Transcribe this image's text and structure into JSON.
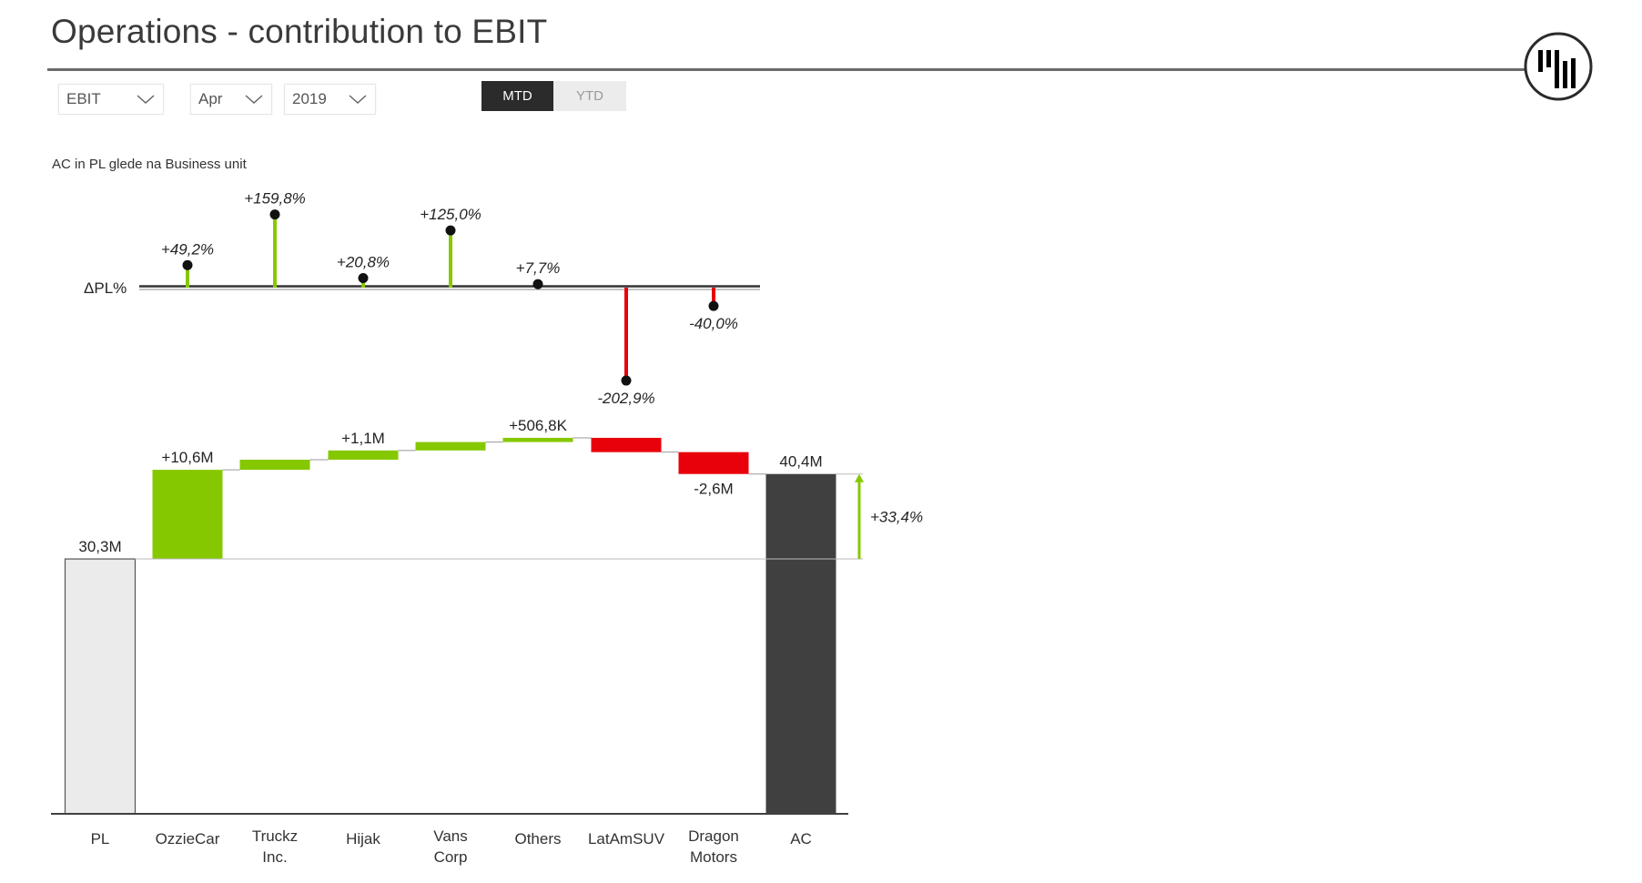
{
  "header": {
    "title": "Operations - contribution to EBIT"
  },
  "filters": {
    "measure": {
      "value": "EBIT"
    },
    "month": {
      "value": "Apr"
    },
    "year": {
      "value": "2019"
    }
  },
  "period_toggle": {
    "options": [
      "MTD",
      "YTD"
    ],
    "selected": "MTD"
  },
  "colors": {
    "positive": "#86c800",
    "negative": "#e8000b",
    "pl_fill": "#ebebeb",
    "ac_fill": "#404040",
    "axis": "#404040",
    "dot": "#111111"
  },
  "chart_data": [
    {
      "type": "lollipop",
      "title": "AC in PL glede na Business unit",
      "axis_label": "ΔPL%",
      "categories": [
        "OzzieCar",
        "Truckz Inc.",
        "Hijak",
        "Vans Corp",
        "Others",
        "LatAmSUV",
        "Dragon Motors"
      ],
      "values": [
        49.2,
        159.8,
        20.8,
        125.0,
        7.7,
        -202.9,
        -40.0
      ],
      "labels": [
        "+49,2%",
        "+159,8%",
        "+20,8%",
        "+125,0%",
        "+7,7%",
        "-202,9%",
        "-40,0%"
      ]
    },
    {
      "type": "waterfall",
      "categories": [
        "PL",
        "OzzieCar",
        "Truckz Inc.",
        "Hijak",
        "Vans Corp",
        "Others",
        "LatAmSUV",
        "Dragon Motors",
        "AC"
      ],
      "category_lines": [
        [
          "PL"
        ],
        [
          "OzzieCar"
        ],
        [
          "Truckz",
          "Inc."
        ],
        [
          "Hijak"
        ],
        [
          "Vans",
          "Corp"
        ],
        [
          "Others"
        ],
        [
          "LatAmSUV"
        ],
        [
          "Dragon",
          "Motors"
        ],
        [
          "AC"
        ]
      ],
      "kinds": [
        "total",
        "delta",
        "delta",
        "delta",
        "delta",
        "delta",
        "delta",
        "delta",
        "total"
      ],
      "values": [
        30.3,
        10.6,
        1.2,
        1.1,
        1.0,
        0.5,
        -1.7,
        -2.6,
        40.4
      ],
      "labels": [
        "30,3M",
        "+10,6M",
        "",
        "+1,1M",
        "",
        "+506,8K",
        "",
        "-2,6M",
        "40,4M"
      ],
      "unit": "M",
      "variance_arrow": {
        "from": "PL",
        "to": "AC",
        "label": "+33,4%"
      }
    }
  ]
}
